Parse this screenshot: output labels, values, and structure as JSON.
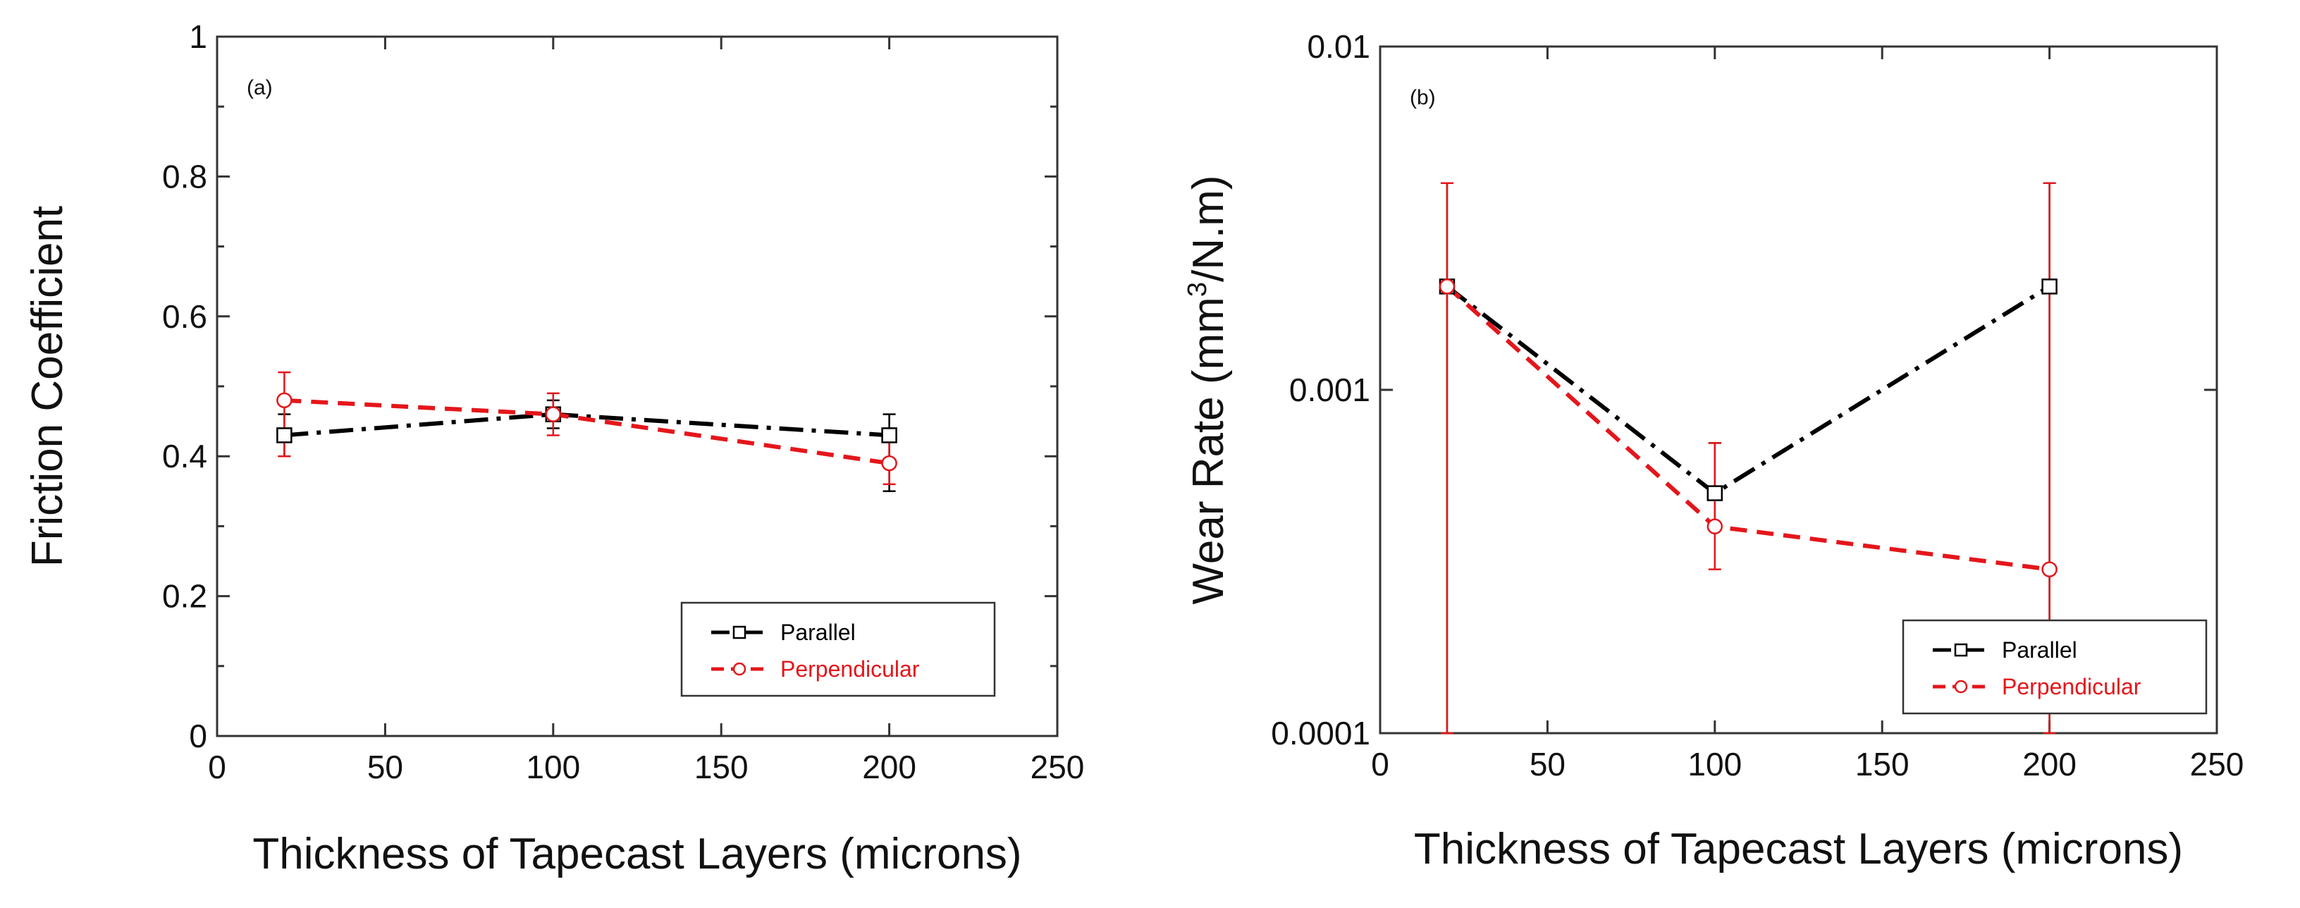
{
  "colors": {
    "series_parallel": "#000000",
    "series_perpendicular": "#e4161b",
    "frame": "#333333",
    "background": "#ffffff"
  },
  "chart_data": [
    {
      "panel": "(a)",
      "type": "line",
      "xlabel": "Thickness of Tapecast Layers (microns)",
      "ylabel": "Friction Coefficient",
      "yscale": "linear",
      "xlim": [
        0,
        250
      ],
      "ylim": [
        0,
        1
      ],
      "xticks": [
        0,
        50,
        100,
        150,
        200,
        250
      ],
      "yticks": [
        0,
        0.2,
        0.4,
        0.6,
        0.8,
        1
      ],
      "xtick_labels": [
        "0",
        "50",
        "100",
        "150",
        "200",
        "250"
      ],
      "ytick_labels": [
        "0",
        "0.2",
        "0.4",
        "0.6",
        "0.8",
        "1"
      ],
      "legend_position": "bottom-right",
      "series": [
        {
          "name": "Parallel",
          "color": "#000000",
          "marker": "square",
          "line": "dash-dot",
          "x": [
            20,
            100,
            200
          ],
          "y": [
            0.43,
            0.46,
            0.43
          ],
          "err_lo": [
            0.4,
            0.44,
            0.35
          ],
          "err_hi": [
            0.46,
            0.48,
            0.46
          ]
        },
        {
          "name": "Perpendicular",
          "color": "#e4161b",
          "marker": "circle",
          "line": "dashed",
          "x": [
            20,
            100,
            200
          ],
          "y": [
            0.48,
            0.46,
            0.39
          ],
          "err_lo": [
            0.4,
            0.43,
            0.36
          ],
          "err_hi": [
            0.52,
            0.49,
            0.42
          ]
        }
      ]
    },
    {
      "panel": "(b)",
      "type": "line",
      "xlabel": "Thickness of Tapecast Layers (microns)",
      "ylabel_main": "Wear Rate (mm",
      "ylabel_sup": "3",
      "ylabel_tail": "/N.m)",
      "yscale": "log",
      "xlim": [
        0,
        250
      ],
      "ylim": [
        0.0001,
        0.01
      ],
      "xticks": [
        0,
        50,
        100,
        150,
        200,
        250
      ],
      "yticks": [
        0.0001,
        0.001,
        0.01
      ],
      "xtick_labels": [
        "0",
        "50",
        "100",
        "150",
        "200",
        "250"
      ],
      "ytick_labels": [
        "0.0001",
        "0.001",
        "0.01"
      ],
      "legend_position": "bottom-right",
      "series": [
        {
          "name": "Parallel",
          "color": "#000000",
          "marker": "square",
          "line": "dash-dot",
          "x": [
            20,
            100,
            200
          ],
          "y": [
            0.002,
            0.0005,
            0.002
          ],
          "err_lo": [
            0.0001,
            0.0004,
            0.0001
          ],
          "err_hi": [
            0.004,
            0.0007,
            0.004
          ]
        },
        {
          "name": "Perpendicular",
          "color": "#e4161b",
          "marker": "circle",
          "line": "dashed",
          "x": [
            20,
            100,
            200
          ],
          "y": [
            0.002,
            0.0004,
            0.0003
          ],
          "err_lo": [
            0.0001,
            0.0003,
            0.0001
          ],
          "err_hi": [
            0.004,
            0.0007,
            0.004
          ]
        }
      ]
    }
  ]
}
